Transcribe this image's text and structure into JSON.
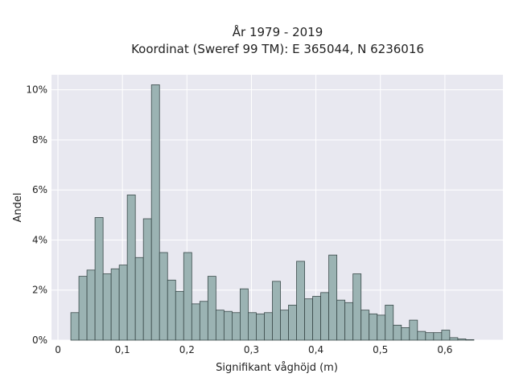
{
  "chart_data": {
    "type": "bar",
    "title": "År 1979 - 2019",
    "subtitle": "Koordinat (Sweref 99 TM): E 365044, N 6236016",
    "xlabel": "Signifikant våghöjd (m)",
    "ylabel": "Andel",
    "xlim": [
      -0.01,
      0.69
    ],
    "ylim": [
      0,
      10.6
    ],
    "x_ticks": [
      0,
      0.1,
      0.2,
      0.3,
      0.4,
      0.5,
      0.6
    ],
    "x_tick_labels": [
      "0",
      "0,1",
      "0,2",
      "0,3",
      "0,4",
      "0,5",
      "0,6"
    ],
    "y_ticks": [
      0,
      2,
      4,
      6,
      8,
      10
    ],
    "y_tick_labels": [
      "0%",
      "2%",
      "4%",
      "6%",
      "8%",
      "10%"
    ],
    "bin_width": 0.0125,
    "bin_start": 0.02,
    "values": [
      1.1,
      2.55,
      2.8,
      4.9,
      2.65,
      2.85,
      3.0,
      5.8,
      3.3,
      4.85,
      10.2,
      3.5,
      2.4,
      1.95,
      3.5,
      1.45,
      1.55,
      2.55,
      1.2,
      1.15,
      1.1,
      2.05,
      1.1,
      1.05,
      1.1,
      2.35,
      1.2,
      1.4,
      3.15,
      1.65,
      1.75,
      1.9,
      3.4,
      1.6,
      1.5,
      2.65,
      1.2,
      1.05,
      1.0,
      1.4,
      0.6,
      0.5,
      0.8,
      0.35,
      0.3,
      0.3,
      0.4,
      0.1,
      0.05,
      0.02
    ],
    "grid": true,
    "colors": {
      "bar_fill": "#9bb3b3",
      "bar_edge": "#3a4a4a",
      "plot_background": "#e8e8f0",
      "grid": "#ffffff"
    }
  }
}
